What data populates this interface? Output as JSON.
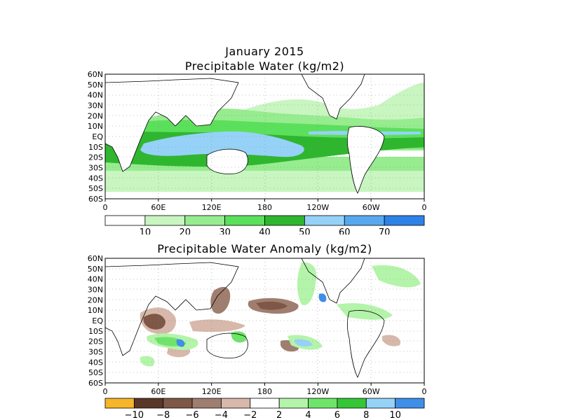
{
  "top_panel": {
    "title_line1": "January 2015",
    "title_line2": "Precipitable Water (kg/m2)",
    "colorbar": {
      "colors": [
        "#ffffff",
        "#c8f5c0",
        "#96ec8e",
        "#5be05b",
        "#2fb62f",
        "#96d2f8",
        "#58a8f0",
        "#2d82e6"
      ],
      "labels": [
        "10",
        "20",
        "30",
        "40",
        "50",
        "60",
        "70"
      ]
    }
  },
  "bottom_panel": {
    "title": "Precipitable Water Anomaly (kg/m2)",
    "colorbar": {
      "colors": [
        "#f7b52a",
        "#5a3728",
        "#7e5746",
        "#a07e6f",
        "#d7b8aa",
        "#ffffff",
        "#b4f4aa",
        "#6fe46b",
        "#35c635",
        "#96d2f8",
        "#3f8fe8"
      ],
      "labels": [
        "−10",
        "−8",
        "−6",
        "−4",
        "−2",
        "2",
        "4",
        "6",
        "8",
        "10"
      ]
    }
  },
  "axes": {
    "lat_labels": [
      "60N",
      "50N",
      "40N",
      "30N",
      "20N",
      "10N",
      "EQ",
      "10S",
      "20S",
      "30S",
      "40S",
      "50S",
      "60S"
    ],
    "lon_labels": [
      "0",
      "60E",
      "120E",
      "180",
      "120W",
      "60W",
      "0"
    ]
  }
}
